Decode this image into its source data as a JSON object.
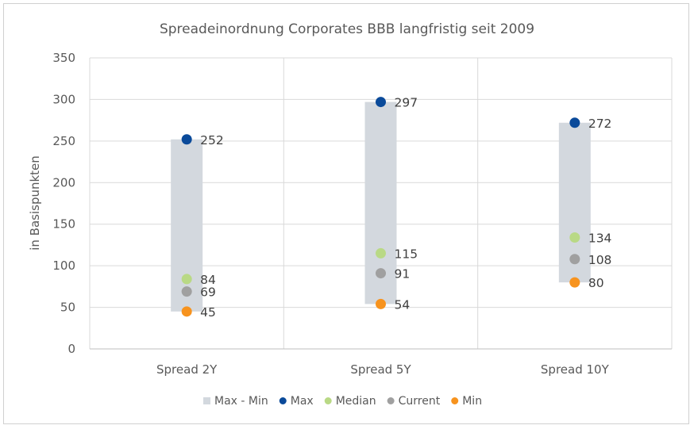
{
  "chart_data": {
    "type": "range-dot",
    "title": "Spreadeinordnung Corporates BBB langfristig seit 2009",
    "xlabel": "",
    "ylabel": "in Basispunkten",
    "ylim": [
      0,
      350
    ],
    "yticks": [
      0,
      50,
      100,
      150,
      200,
      250,
      300,
      350
    ],
    "grid": true,
    "legend_position": "bottom",
    "categories": [
      "Spread 2Y",
      "Spread 5Y",
      "Spread 10Y"
    ],
    "series": [
      {
        "name": "Max - Min",
        "kind": "range-bar",
        "color": "#d3d8de",
        "low": [
          45,
          54,
          80
        ],
        "high": [
          252,
          297,
          272
        ]
      },
      {
        "name": "Max",
        "kind": "dot",
        "color": "#0a4a9a",
        "values": [
          252,
          297,
          272
        ]
      },
      {
        "name": "Median",
        "kind": "dot",
        "color": "#b9d985",
        "values": [
          84,
          115,
          134
        ]
      },
      {
        "name": "Current",
        "kind": "dot",
        "color": "#a0a0a0",
        "values": [
          69,
          91,
          108
        ]
      },
      {
        "name": "Min",
        "kind": "dot",
        "color": "#f7931e",
        "values": [
          45,
          54,
          80
        ]
      }
    ]
  }
}
